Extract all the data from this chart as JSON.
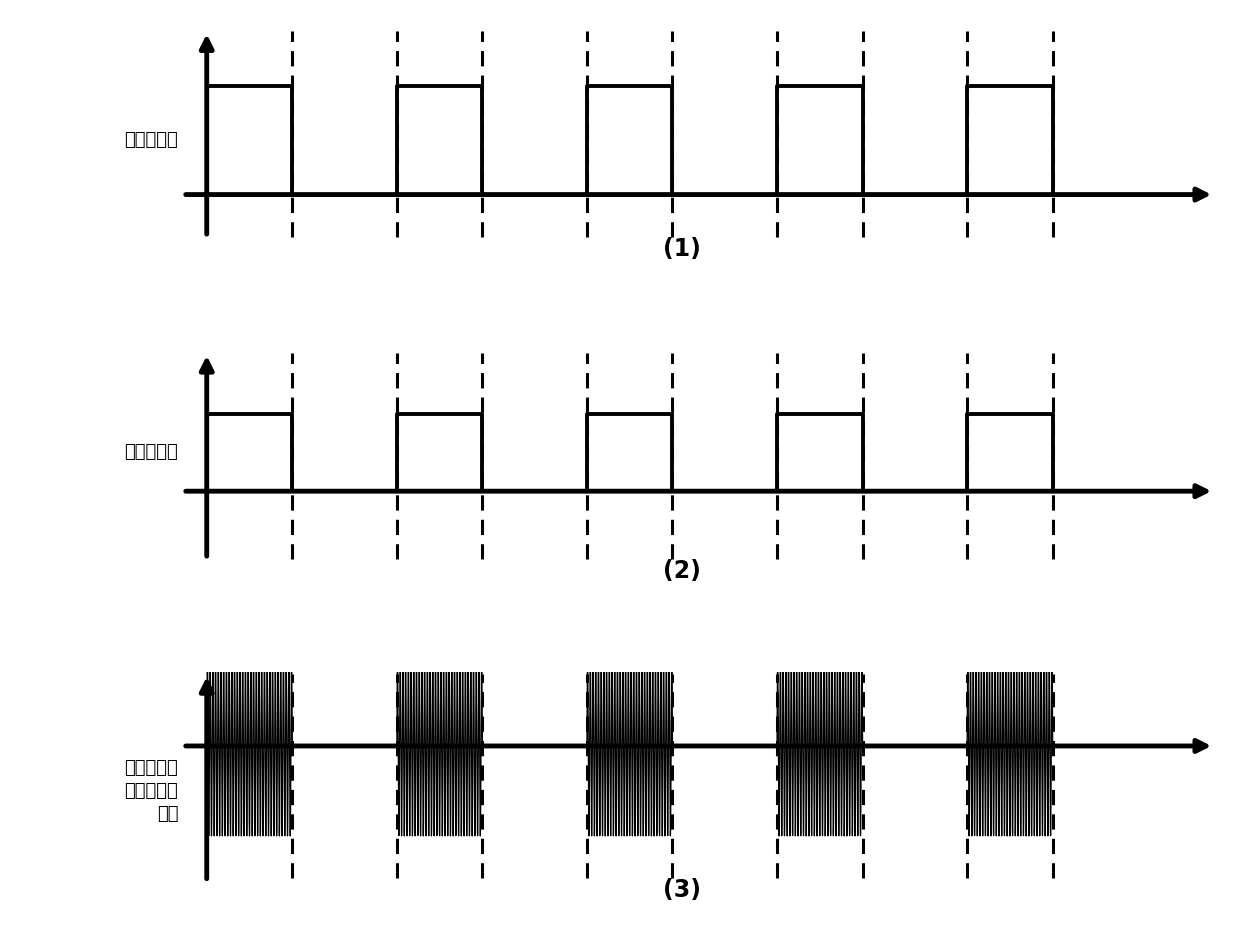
{
  "label1": "低电压信号",
  "label2": "高电压信号",
  "label3_line1": "用高电压载",
  "label3_line2": "波的电磁波",
  "label3_line3": "信号",
  "tag1": "(1)",
  "tag2": "(2)",
  "tag3": "(3)",
  "background_color": "#ffffff",
  "signal_color": "#000000",
  "period": 2.0,
  "duty": 0.45,
  "num_periods": 5,
  "carrier_freq": 35,
  "line_width": 2.8,
  "axis_lw": 3.5,
  "dash_lw": 2.2,
  "font_size_label": 13,
  "font_size_tag": 17,
  "sq1_amplitude": 0.72,
  "sq2_amplitude": 0.55,
  "carrier_amplitude": 0.85
}
